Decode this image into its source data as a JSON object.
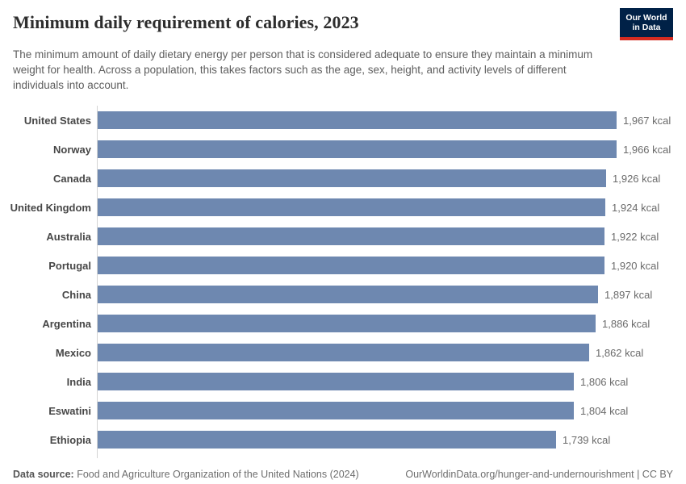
{
  "header": {
    "title": "Minimum daily requirement of calories, 2023",
    "subtitle": "The minimum amount of daily dietary energy per person that is considered adequate to ensure they maintain a minimum weight for health. Across a population, this takes factors such as the age, sex, height, and activity levels of different individuals into account.",
    "logo": {
      "line1": "Our World",
      "line2": "in Data"
    }
  },
  "chart_data": {
    "type": "bar",
    "orientation": "horizontal",
    "title": "Minimum daily requirement of calories, 2023",
    "unit": "kcal",
    "categories": [
      "United States",
      "Norway",
      "Canada",
      "United Kingdom",
      "Australia",
      "Portugal",
      "China",
      "Argentina",
      "Mexico",
      "India",
      "Eswatini",
      "Ethiopia"
    ],
    "values": [
      1967,
      1966,
      1926,
      1924,
      1922,
      1920,
      1897,
      1886,
      1862,
      1806,
      1804,
      1739
    ],
    "value_labels": [
      "1,967 kcal",
      "1,966 kcal",
      "1,926 kcal",
      "1,924 kcal",
      "1,922 kcal",
      "1,920 kcal",
      "1,897 kcal",
      "1,886 kcal",
      "1,862 kcal",
      "1,806 kcal",
      "1,804 kcal",
      "1,739 kcal"
    ],
    "xlabel": "",
    "ylabel": "",
    "xlim": [
      0,
      1967
    ],
    "grid": false,
    "legend": false
  },
  "footer": {
    "source_label": "Data source:",
    "source_text": " Food and Agriculture Organization of the United Nations (2024)",
    "link_text": "OurWorldinData.org/hunger-and-undernourishment | CC BY"
  },
  "colors": {
    "bar": "#6e88b0",
    "axis_line": "#d4d4d4",
    "logo_background": "#002147",
    "logo_accent": "#d42b21"
  }
}
